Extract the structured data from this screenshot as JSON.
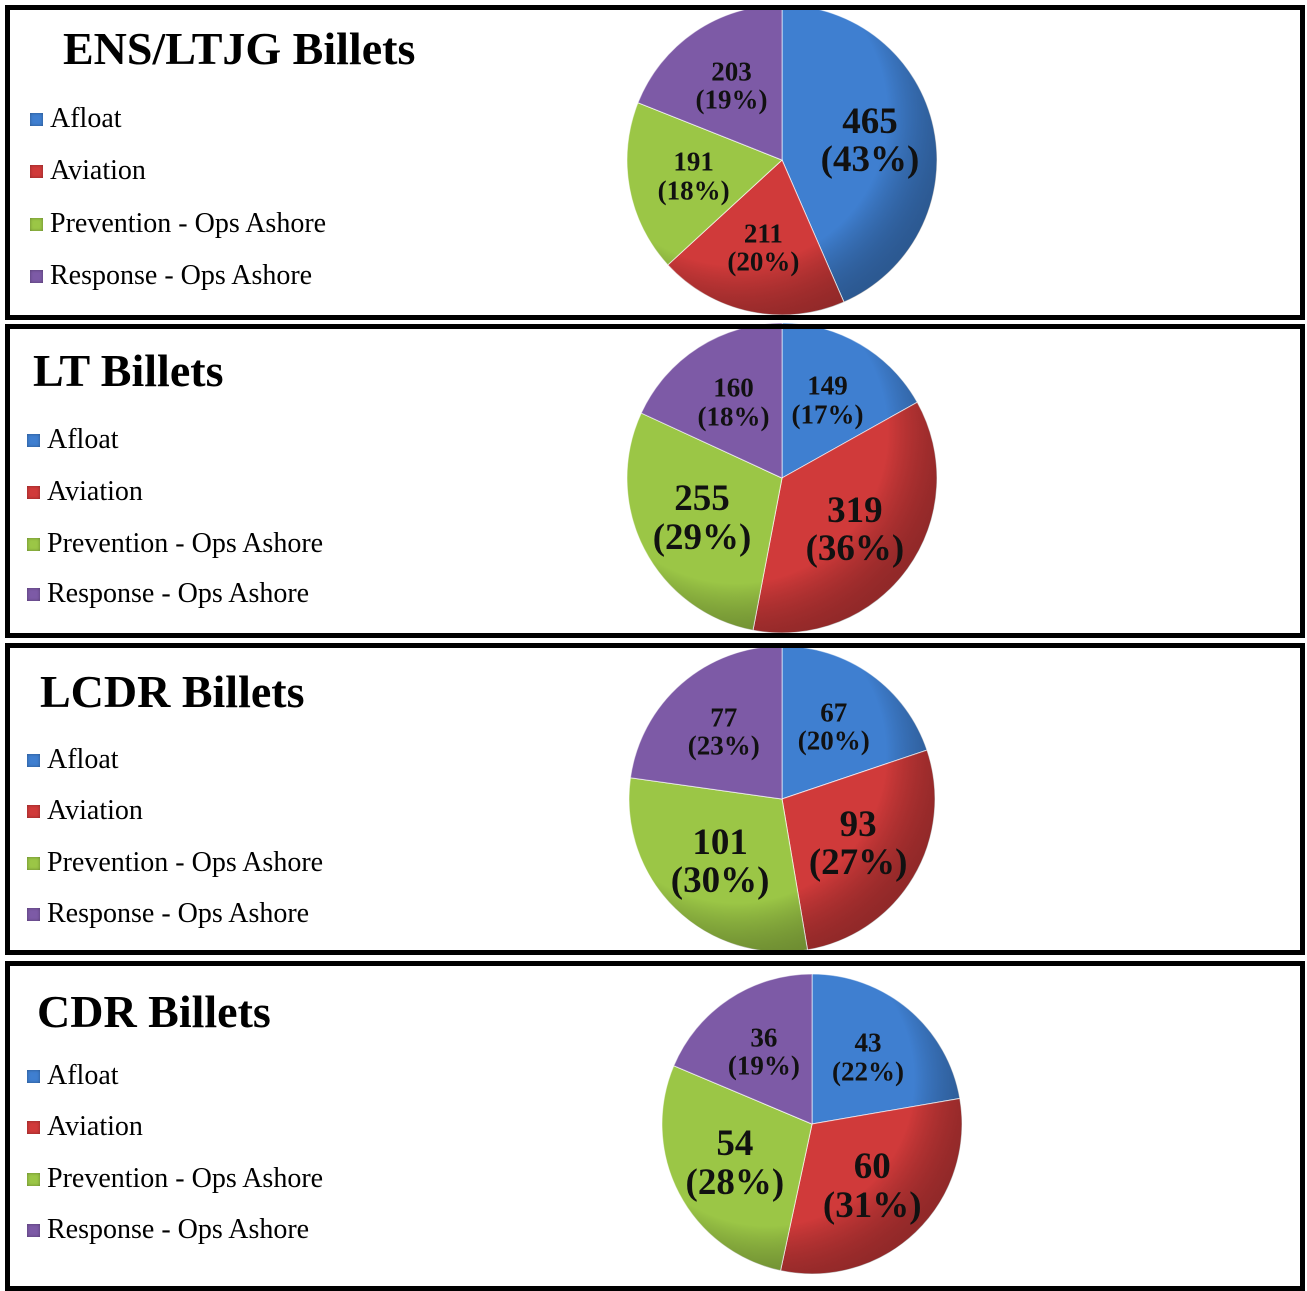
{
  "chart_data": [
    {
      "type": "pie",
      "title": "ENS/LTJG Billets",
      "categories": [
        "Afloat",
        "Aviation",
        "Prevention - Ops Ashore",
        "Response - Ops Ashore"
      ],
      "values": [
        465,
        211,
        191,
        203
      ],
      "value_labels": [
        "465\n(43%)",
        "211\n(20%)",
        "191\n(18%)",
        "203\n(19%)"
      ],
      "colors": [
        "#3f7fd0",
        "#d03a3a",
        "#9bc646",
        "#7d5aa6"
      ]
    },
    {
      "type": "pie",
      "title": "LT Billets",
      "categories": [
        "Afloat",
        "Aviation",
        "Prevention - Ops Ashore",
        "Response - Ops Ashore"
      ],
      "values": [
        149,
        319,
        255,
        160
      ],
      "value_labels": [
        "149\n(17%)",
        "319\n(36%)",
        "255\n(29%)",
        "160\n(18%)"
      ],
      "colors": [
        "#3f7fd0",
        "#d03a3a",
        "#9bc646",
        "#7d5aa6"
      ]
    },
    {
      "type": "pie",
      "title": "LCDR Billets",
      "categories": [
        "Afloat",
        "Aviation",
        "Prevention - Ops Ashore",
        "Response - Ops Ashore"
      ],
      "values": [
        67,
        93,
        101,
        77
      ],
      "value_labels": [
        "67\n(20%)",
        "93\n(27%)",
        "101\n(30%)",
        "77\n(23%)"
      ],
      "colors": [
        "#3f7fd0",
        "#d03a3a",
        "#9bc646",
        "#7d5aa6"
      ]
    },
    {
      "type": "pie",
      "title": "CDR Billets",
      "categories": [
        "Afloat",
        "Aviation",
        "Prevention - Ops Ashore",
        "Response - Ops Ashore"
      ],
      "values": [
        43,
        60,
        54,
        36
      ],
      "value_labels": [
        "43\n(22%)",
        "60\n(31%)",
        "54\n(28%)",
        "36\n(19%)"
      ],
      "colors": [
        "#3f7fd0",
        "#d03a3a",
        "#9bc646",
        "#7d5aa6"
      ]
    }
  ]
}
